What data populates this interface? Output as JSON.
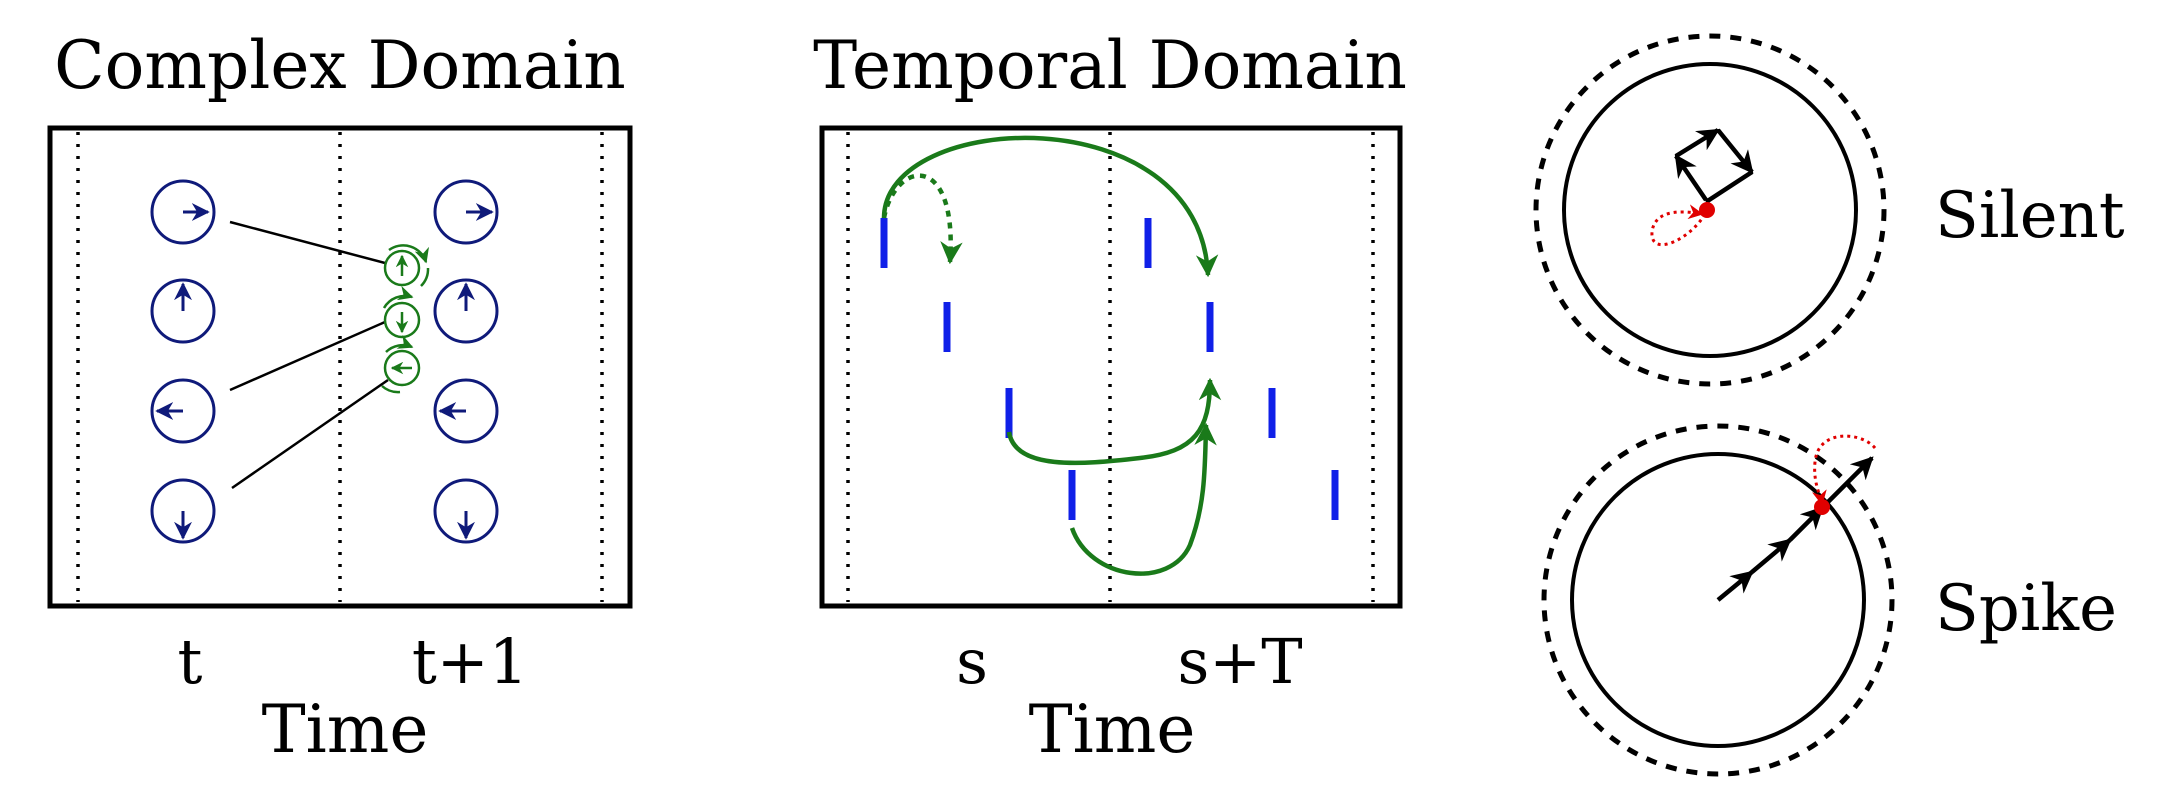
{
  "complex_panel": {
    "title": "Complex Domain",
    "tick_left": "t",
    "tick_right": "t+1",
    "xlabel": "Time"
  },
  "temporal_panel": {
    "title": "Temporal Domain",
    "tick_left": "s",
    "tick_right": "s+T",
    "xlabel": "Time"
  },
  "right_panel": {
    "silent_label": "Silent",
    "spike_label": "Spike"
  },
  "colors": {
    "oscillator": "#0f1a7a",
    "transfer": "#1a7a1a",
    "spike": "#1020e8",
    "threshold_point": "#e00000"
  }
}
